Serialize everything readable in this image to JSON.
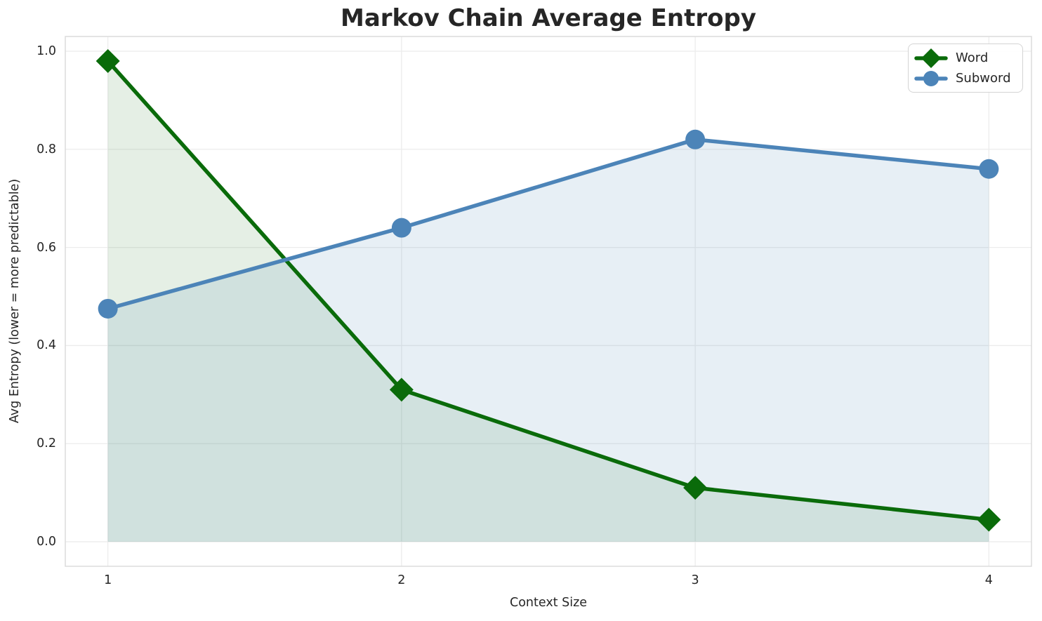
{
  "chart_data": {
    "type": "line",
    "title": "Markov Chain Average Entropy",
    "xlabel": "Context Size",
    "ylabel": "Avg Entropy (lower = more predictable)",
    "x": [
      1,
      2,
      3,
      4
    ],
    "series": [
      {
        "name": "Word",
        "values": [
          0.98,
          0.31,
          0.11,
          0.045
        ],
        "color": "#0a6b0a",
        "fill_color": "rgba(0,100,0,0.10)",
        "marker": "diamond"
      },
      {
        "name": "Subword",
        "values": [
          0.475,
          0.64,
          0.82,
          0.76
        ],
        "color": "#4c84b8",
        "fill_color": "rgba(70,130,180,0.13)",
        "marker": "circle"
      }
    ],
    "xlim": [
      0.855,
      4.145
    ],
    "ylim": [
      -0.05,
      1.03
    ],
    "xticks": {
      "values": [
        1,
        2,
        3,
        4
      ],
      "labels": [
        "1",
        "2",
        "3",
        "4"
      ]
    },
    "yticks": {
      "values": [
        0,
        0.2,
        0.4,
        0.6,
        0.8,
        1.0
      ],
      "labels": [
        "0.0",
        "0.2",
        "0.4",
        "0.6",
        "0.8",
        "1.0"
      ]
    },
    "grid": true,
    "grid_color": "#ececec",
    "spine_color": "#dcdcdc",
    "legend_position": "upper right",
    "area_fill_baseline": 0
  }
}
